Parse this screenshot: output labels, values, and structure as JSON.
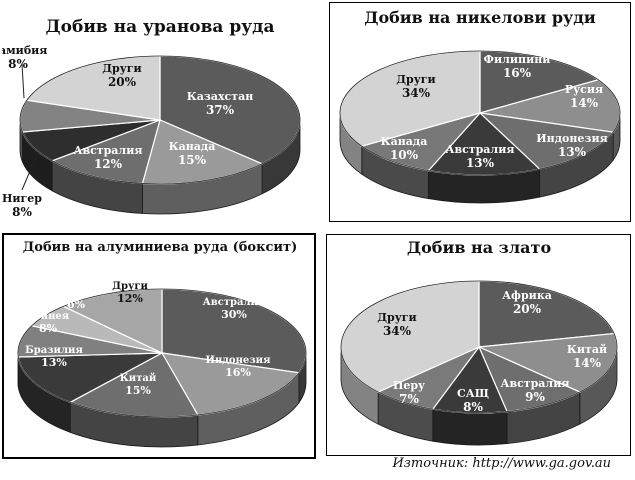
{
  "chart_data": [
    {
      "type": "pie",
      "title": "Добив на уранова руда",
      "slices": [
        {
          "label": "Казахстан",
          "value": 37,
          "value_label": "37%",
          "color": "#5b5b5b",
          "text": "#ffffff"
        },
        {
          "label": "Канада",
          "value": 15,
          "value_label": "15%",
          "color": "#9a9a9a",
          "text": "#ffffff"
        },
        {
          "label": "Австралия",
          "value": 12,
          "value_label": "12%",
          "color": "#6e6e6e",
          "text": "#ffffff"
        },
        {
          "label": "Нигер",
          "value": 8,
          "value_label": "8%",
          "color": "#2e2e2e",
          "text": "#ffffff"
        },
        {
          "label": "Намибия",
          "value": 8,
          "value_label": "8%",
          "color": "#838383",
          "text": "#ffffff"
        },
        {
          "label": "Други",
          "value": 20,
          "value_label": "20%",
          "color": "#d3d3d3",
          "text": "#111111"
        }
      ]
    },
    {
      "type": "pie",
      "title": "Добив на никелови руди",
      "slices": [
        {
          "label": "Филипини",
          "value": 16,
          "value_label": "16%",
          "color": "#5b5b5b",
          "text": "#ffffff"
        },
        {
          "label": "Русия",
          "value": 14,
          "value_label": "14%",
          "color": "#8e8e8e",
          "text": "#ffffff"
        },
        {
          "label": "Индонезия",
          "value": 13,
          "value_label": "13%",
          "color": "#6e6e6e",
          "text": "#ffffff"
        },
        {
          "label": "Австралия",
          "value": 13,
          "value_label": "13%",
          "color": "#3a3a3a",
          "text": "#ffffff"
        },
        {
          "label": "Канада",
          "value": 10,
          "value_label": "10%",
          "color": "#787878",
          "text": "#ffffff"
        },
        {
          "label": "Други",
          "value": 34,
          "value_label": "34%",
          "color": "#d3d3d3",
          "text": "#111111"
        }
      ]
    },
    {
      "type": "pie",
      "title": "Добив на алуминиева руда (боксит)",
      "slices": [
        {
          "label": "Австралия",
          "value": 30,
          "value_label": "30%",
          "color": "#5b5b5b",
          "text": "#ffffff"
        },
        {
          "label": "Индонезия",
          "value": 16,
          "value_label": "16%",
          "color": "#9a9a9a",
          "text": "#ffffff"
        },
        {
          "label": "Китай",
          "value": 15,
          "value_label": "15%",
          "color": "#6e6e6e",
          "text": "#ffffff"
        },
        {
          "label": "Бразилия",
          "value": 13,
          "value_label": "13%",
          "color": "#3a3a3a",
          "text": "#ffffff"
        },
        {
          "label": "Гвинея",
          "value": 8,
          "value_label": "8%",
          "color": "#808080",
          "text": "#ffffff"
        },
        {
          "label": "Индия",
          "value": 6,
          "value_label": "6%",
          "color": "#b9b9b9",
          "text": "#ffffff"
        },
        {
          "label": "Други",
          "value": 12,
          "value_label": "12%",
          "color": "#a6a6a6",
          "text": "#111111"
        }
      ]
    },
    {
      "type": "pie",
      "title": "Добив на злато",
      "slices": [
        {
          "label": "Африка",
          "value": 20,
          "value_label": "20%",
          "color": "#5b5b5b",
          "text": "#ffffff"
        },
        {
          "label": "Китай",
          "value": 14,
          "value_label": "14%",
          "color": "#8e8e8e",
          "text": "#ffffff"
        },
        {
          "label": "Австралия",
          "value": 9,
          "value_label": "9%",
          "color": "#6e6e6e",
          "text": "#ffffff"
        },
        {
          "label": "САЩ",
          "value": 8,
          "value_label": "8%",
          "color": "#3a3a3a",
          "text": "#ffffff"
        },
        {
          "label": "Перу",
          "value": 7,
          "value_label": "7%",
          "color": "#7a7a7a",
          "text": "#ffffff"
        },
        {
          "label": "Други",
          "value": 34,
          "value_label": "34%",
          "color": "#d3d3d3",
          "text": "#111111"
        }
      ]
    }
  ],
  "source": "Източник: http://www.ga.gov.au"
}
